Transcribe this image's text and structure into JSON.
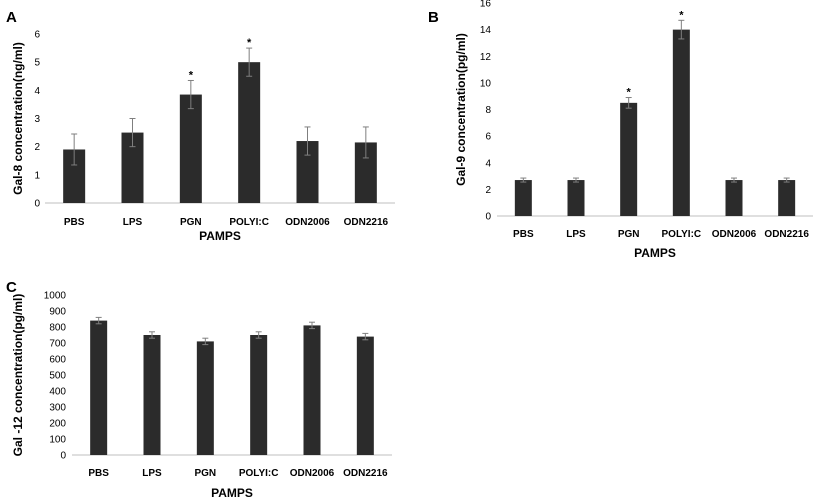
{
  "chart_data": [
    {
      "panel": "A",
      "type": "bar",
      "categories": [
        "PBS",
        "LPS",
        "PGN",
        "POLYI:C",
        "ODN2006",
        "ODN2216"
      ],
      "values": [
        1.9,
        2.5,
        3.85,
        5.0,
        2.2,
        2.15
      ],
      "errors": [
        0.55,
        0.5,
        0.5,
        0.5,
        0.5,
        0.55
      ],
      "significant": [
        "",
        "",
        "*",
        "*",
        "",
        ""
      ],
      "xlabel": "PAMPS",
      "ylabel": "Gal-8 concentration(ng/ml)",
      "ylim": [
        0,
        6
      ],
      "yticks": [
        0,
        1,
        2,
        3,
        4,
        5,
        6
      ],
      "bar_color": "#2b2b2b"
    },
    {
      "panel": "B",
      "type": "bar",
      "categories": [
        "PBS",
        "LPS",
        "PGN",
        "POLYI:C",
        "ODN2006",
        "ODN2216"
      ],
      "values": [
        2.7,
        2.7,
        8.5,
        14.0,
        2.7,
        2.7
      ],
      "errors": [
        0.15,
        0.15,
        0.4,
        0.7,
        0.15,
        0.15
      ],
      "significant": [
        "",
        "",
        "*",
        "*",
        "",
        ""
      ],
      "xlabel": "PAMPS",
      "ylabel": "Gal-9 concentration(pg/ml)",
      "ylim": [
        0,
        16
      ],
      "yticks": [
        0,
        2,
        4,
        6,
        8,
        10,
        12,
        14,
        16
      ],
      "bar_color": "#2b2b2b"
    },
    {
      "panel": "C",
      "type": "bar",
      "categories": [
        "PBS",
        "LPS",
        "PGN",
        "POLYI:C",
        "ODN2006",
        "ODN2216"
      ],
      "values": [
        840,
        750,
        710,
        750,
        810,
        740
      ],
      "errors": [
        20,
        20,
        20,
        20,
        20,
        20
      ],
      "significant": [
        "",
        "",
        "",
        "",
        "",
        ""
      ],
      "xlabel": "PAMPS",
      "ylabel": "Gal -12 concentration(pg/ml)",
      "ylim": [
        0,
        1000
      ],
      "yticks": [
        0,
        100,
        200,
        300,
        400,
        500,
        600,
        700,
        800,
        900,
        1000
      ],
      "bar_color": "#2b2b2b",
      "xlabel_color": "#8a8a8a"
    }
  ]
}
